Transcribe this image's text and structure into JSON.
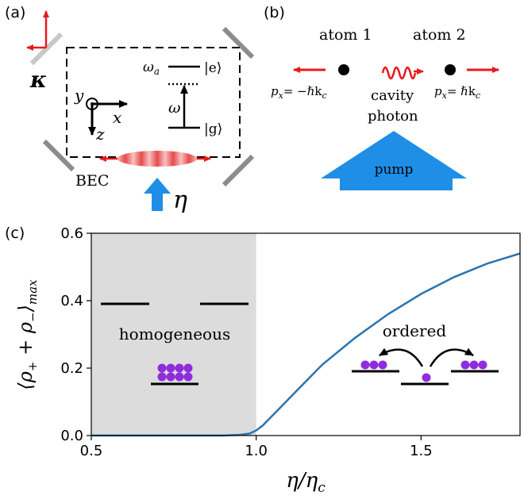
{
  "panels": {
    "a": "(a)",
    "b": "(b)",
    "c": "(c)"
  },
  "panel_a": {
    "kappa": "κ",
    "omega_a": "ω",
    "omega_a_sub": "a",
    "ket_e": "|e⟩",
    "ket_g": "|g⟩",
    "omega": "ω",
    "axis_x": "x",
    "axis_y": "y",
    "axis_z": "z",
    "bec": "BEC",
    "eta": "η"
  },
  "panel_b": {
    "atom1": "atom 1",
    "atom2": "atom 2",
    "px_left": "p",
    "px_left_rhs": "= −ℏk",
    "px_right": "p",
    "px_right_rhs": "= ℏk",
    "sub_x": "x",
    "sub_c": "c",
    "cavity": "cavity",
    "photon": "photon",
    "pump": "pump"
  },
  "panel_c": {
    "homogeneous": "homogeneous",
    "ordered": "ordered"
  },
  "colors": {
    "red": "#e8191c",
    "blue": "#1f8ee6",
    "line": "#2c74b0",
    "shade": "#dcdcdc",
    "purple": "#8e2ddb",
    "mirror": "#8c8c8c"
  },
  "chart_data": {
    "type": "line",
    "xlabel": "η/η_c",
    "ylabel": "⟨ρ₊ + ρ₋⟩max",
    "xlim": [
      0.5,
      1.8
    ],
    "ylim": [
      0.0,
      0.6
    ],
    "x_ticks": [
      "0.5",
      "1.0",
      "1.5"
    ],
    "y_ticks": [
      "0.0",
      "0.2",
      "0.4",
      "0.6"
    ],
    "shaded_region": [
      0.5,
      1.0
    ],
    "grid": false,
    "series": [
      {
        "x": [
          0.5,
          0.8,
          0.9,
          0.95,
          0.98,
          1.0,
          1.02,
          1.05,
          1.1,
          1.15,
          1.2,
          1.3,
          1.4,
          1.5,
          1.6,
          1.7,
          1.8
        ],
        "y": [
          0.0,
          0.0,
          0.0,
          0.002,
          0.006,
          0.015,
          0.03,
          0.06,
          0.11,
          0.16,
          0.21,
          0.29,
          0.36,
          0.42,
          0.47,
          0.51,
          0.54
        ]
      }
    ]
  }
}
